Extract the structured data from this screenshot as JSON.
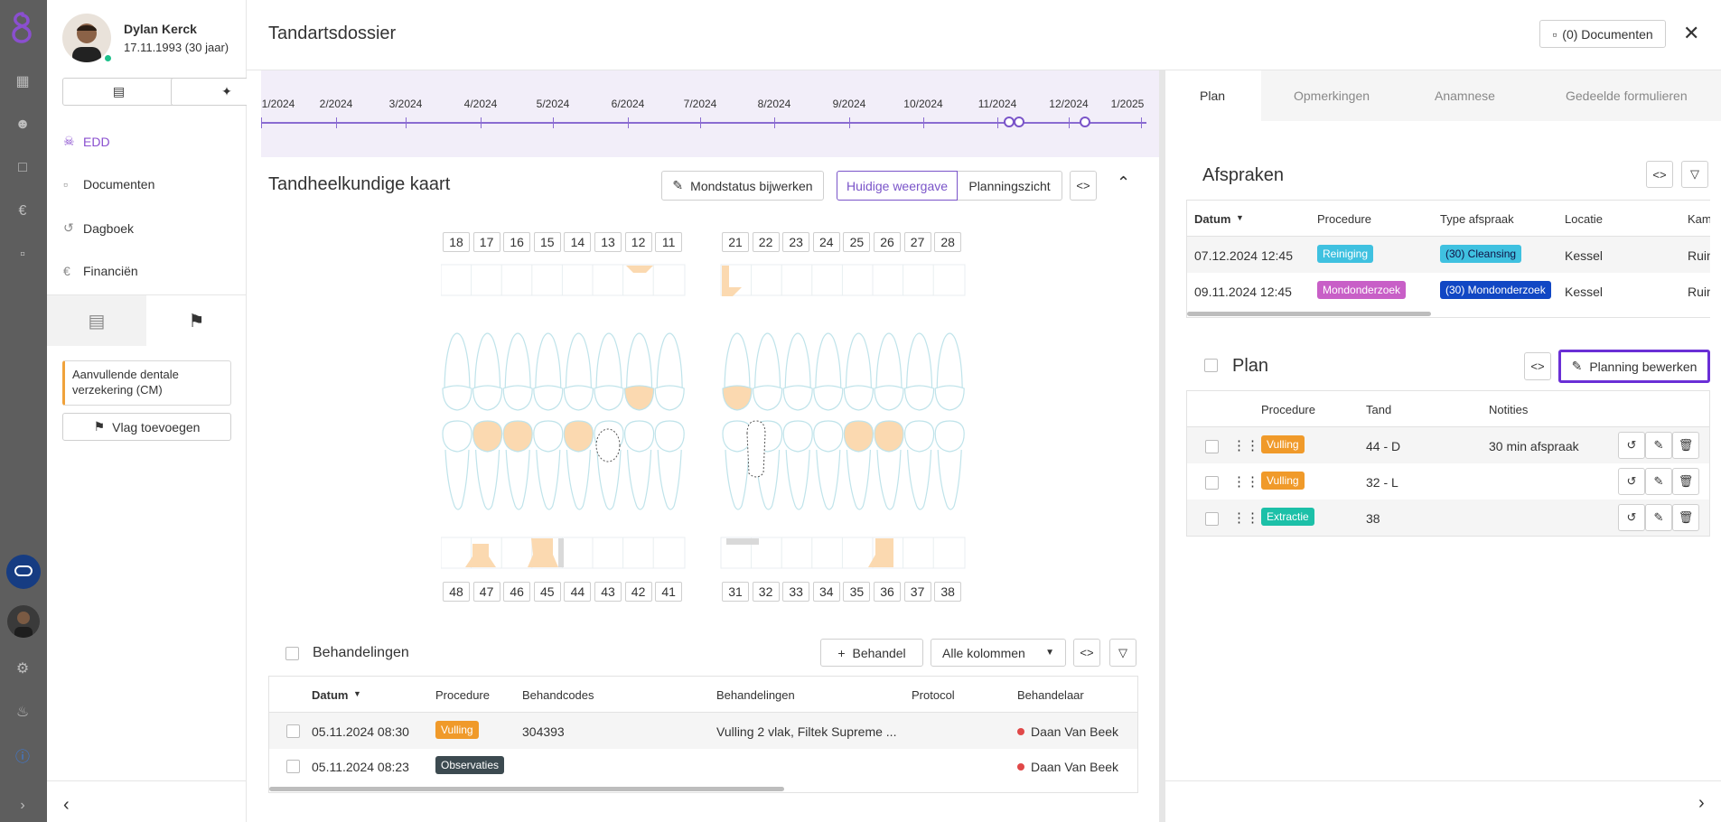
{
  "patient": {
    "name": "Dylan Kerck",
    "dob": "17.11.1993 (30 jaar)"
  },
  "nav": [
    {
      "label": "EDD",
      "icon": "tooth-icon",
      "active": true
    },
    {
      "label": "Documenten",
      "icon": "document-icon"
    },
    {
      "label": "Dagboek",
      "icon": "history-icon"
    },
    {
      "label": "Financiën",
      "icon": "euro-icon"
    }
  ],
  "flags": {
    "insurance": "Aanvullende dentale verzekering (CM)",
    "add_flag": "Vlag toevoegen"
  },
  "header": {
    "title": "Tandartsdossier",
    "documents": "(0) Documenten"
  },
  "timeline": [
    "1/2024",
    "2/2024",
    "3/2024",
    "4/2024",
    "5/2024",
    "6/2024",
    "7/2024",
    "8/2024",
    "9/2024",
    "10/2024",
    "11/2024",
    "12/2024",
    "1/2025"
  ],
  "chart": {
    "title": "Tandheelkundige kaart",
    "update_btn": "Mondstatus bijwerken",
    "view_current": "Huidige weergave",
    "view_plan": "Planningszicht",
    "upper_right": [
      "18",
      "17",
      "16",
      "15",
      "14",
      "13",
      "12",
      "11"
    ],
    "upper_left": [
      "21",
      "22",
      "23",
      "24",
      "25",
      "26",
      "27",
      "28"
    ],
    "lower_right": [
      "48",
      "47",
      "46",
      "45",
      "44",
      "43",
      "42",
      "41"
    ],
    "lower_left": [
      "31",
      "32",
      "33",
      "34",
      "35",
      "36",
      "37",
      "38"
    ]
  },
  "treatments": {
    "title": "Behandelingen",
    "add_btn": "Behandel",
    "columns_select": "Alle kolommen",
    "headers": [
      "Datum",
      "Procedure",
      "Behandcodes",
      "Behandelingen",
      "Protocol",
      "Behandelaar"
    ],
    "rows": [
      {
        "date": "05.11.2024 08:30",
        "procedure": "Vulling",
        "codes": "304393",
        "treatment": "Vulling 2 vlak, Filtek Supreme ...",
        "protocol": "",
        "dentist": "Daan Van Beek"
      },
      {
        "date": "05.11.2024 08:23",
        "procedure": "Observaties",
        "codes": "",
        "treatment": "",
        "protocol": "",
        "dentist": "Daan Van Beek"
      }
    ]
  },
  "right_tabs": [
    "Plan",
    "Opmerkingen",
    "Anamnese",
    "Gedeelde formulieren"
  ],
  "appointments": {
    "title": "Afspraken",
    "headers": [
      "Datum",
      "Procedure",
      "Type afspraak",
      "Locatie",
      "Kam"
    ],
    "rows": [
      {
        "date": "07.12.2024 12:45",
        "procedure": "Reiniging",
        "type": "(30) Cleansing",
        "location": "Kessel",
        "room": "Ruin"
      },
      {
        "date": "09.11.2024 12:45",
        "procedure": "Mondonderzoek",
        "type": "(30) Mondonderzoek",
        "location": "Kessel",
        "room": "Ruin"
      }
    ]
  },
  "plan": {
    "title": "Plan",
    "edit_btn": "Planning bewerken",
    "headers": [
      "Procedure",
      "Tand",
      "Notities"
    ],
    "rows": [
      {
        "procedure": "Vulling",
        "tooth": "44 - D",
        "notes": "30 min afspraak"
      },
      {
        "procedure": "Vulling",
        "tooth": "32 - L",
        "notes": ""
      },
      {
        "procedure": "Extractie",
        "tooth": "38",
        "notes": ""
      }
    ]
  },
  "colors": {
    "accent": "#7a54c9",
    "vulling": "#f09a2a",
    "reiniging": "#3fc1e0",
    "mondonderzoek": "#c85fc7",
    "mondonderzoek_type": "#1147c4",
    "extractie": "#1cc0a8",
    "observaties": "#3c4a50",
    "tooth_fill": "#fbd9b0",
    "status_dot": "#e04848"
  }
}
